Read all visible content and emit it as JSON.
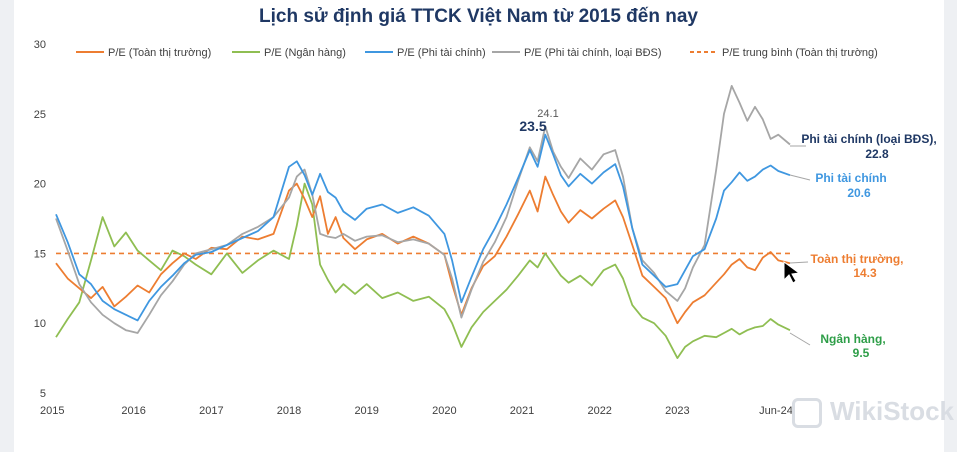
{
  "chart_data": {
    "type": "line",
    "title": "Lịch sử định giá TTCK Việt Nam từ 2015 đến nay",
    "xlabel": "",
    "ylabel": "",
    "ylim": [
      5,
      30
    ],
    "yticks": [
      "5",
      "10",
      "15",
      "20",
      "25",
      "30"
    ],
    "xlim": [
      2015.0,
      2024.45
    ],
    "xticks": [
      "2015",
      "2016",
      "2017",
      "2018",
      "2019",
      "2020",
      "2021",
      "2022",
      "2023",
      "Jun-24"
    ],
    "legend_position": "top",
    "series": [
      {
        "name": "P/E (Toàn thị trường)",
        "color": "#ed7d31",
        "dashed": false,
        "x": [
          2015.0,
          2015.15,
          2015.3,
          2015.45,
          2015.6,
          2015.75,
          2015.9,
          2016.05,
          2016.2,
          2016.35,
          2016.5,
          2016.65,
          2016.8,
          2017.0,
          2017.2,
          2017.4,
          2017.6,
          2017.8,
          2018.0,
          2018.1,
          2018.2,
          2018.3,
          2018.4,
          2018.5,
          2018.6,
          2018.7,
          2018.85,
          2019.0,
          2019.2,
          2019.4,
          2019.6,
          2019.8,
          2020.0,
          2020.1,
          2020.22,
          2020.35,
          2020.5,
          2020.65,
          2020.8,
          2020.95,
          2021.1,
          2021.2,
          2021.3,
          2021.4,
          2021.5,
          2021.6,
          2021.75,
          2021.9,
          2022.05,
          2022.2,
          2022.3,
          2022.42,
          2022.55,
          2022.7,
          2022.85,
          2023.0,
          2023.1,
          2023.2,
          2023.35,
          2023.5,
          2023.6,
          2023.7,
          2023.8,
          2023.9,
          2024.0,
          2024.1,
          2024.2,
          2024.3,
          2024.45
        ],
        "values": [
          14.3,
          13.2,
          12.5,
          11.8,
          12.6,
          11.2,
          11.9,
          12.7,
          12.2,
          13.5,
          14.3,
          15.0,
          14.6,
          15.4,
          15.3,
          16.2,
          16.0,
          16.4,
          19.5,
          20.0,
          18.9,
          17.6,
          19.1,
          16.4,
          17.6,
          16.1,
          15.3,
          16.0,
          16.4,
          15.7,
          16.2,
          15.7,
          14.9,
          12.8,
          10.6,
          12.5,
          14.1,
          14.8,
          16.2,
          17.8,
          19.5,
          18.0,
          20.5,
          19.2,
          18.0,
          17.2,
          18.1,
          17.5,
          18.2,
          18.8,
          17.6,
          15.6,
          13.4,
          12.6,
          11.8,
          10.0,
          10.8,
          11.5,
          12.0,
          12.9,
          13.5,
          14.2,
          14.6,
          14.0,
          13.8,
          14.7,
          15.1,
          14.5,
          14.3
        ]
      },
      {
        "name": "P/E (Ngân hàng)",
        "color": "#8fbe52",
        "dashed": false,
        "x": [
          2015.0,
          2015.15,
          2015.3,
          2015.45,
          2015.6,
          2015.75,
          2015.9,
          2016.05,
          2016.2,
          2016.35,
          2016.5,
          2016.65,
          2016.8,
          2017.0,
          2017.2,
          2017.4,
          2017.6,
          2017.8,
          2018.0,
          2018.1,
          2018.2,
          2018.3,
          2018.4,
          2018.5,
          2018.6,
          2018.7,
          2018.85,
          2019.0,
          2019.2,
          2019.4,
          2019.6,
          2019.8,
          2020.0,
          2020.1,
          2020.22,
          2020.35,
          2020.5,
          2020.65,
          2020.8,
          2020.95,
          2021.1,
          2021.2,
          2021.3,
          2021.4,
          2021.5,
          2021.6,
          2021.75,
          2021.9,
          2022.05,
          2022.2,
          2022.3,
          2022.42,
          2022.55,
          2022.7,
          2022.85,
          2023.0,
          2023.1,
          2023.2,
          2023.35,
          2023.5,
          2023.6,
          2023.7,
          2023.8,
          2023.9,
          2024.0,
          2024.1,
          2024.2,
          2024.3,
          2024.45
        ],
        "values": [
          9.0,
          10.3,
          11.5,
          14.5,
          17.6,
          15.5,
          16.5,
          15.2,
          14.5,
          13.8,
          15.2,
          14.8,
          14.2,
          13.5,
          15.0,
          13.6,
          14.5,
          15.2,
          14.6,
          17.0,
          20.0,
          18.5,
          14.2,
          13.1,
          12.2,
          12.8,
          12.1,
          12.8,
          11.8,
          12.2,
          11.6,
          11.9,
          11.0,
          10.0,
          8.3,
          9.7,
          10.8,
          11.6,
          12.4,
          13.4,
          14.5,
          14.0,
          15.0,
          14.2,
          13.4,
          12.9,
          13.4,
          12.7,
          13.8,
          14.2,
          13.2,
          11.3,
          10.4,
          10.0,
          9.1,
          7.5,
          8.3,
          8.7,
          9.1,
          9.0,
          9.3,
          9.6,
          9.2,
          9.5,
          9.7,
          9.8,
          10.3,
          9.9,
          9.5
        ]
      },
      {
        "name": "P/E (Phi tài chính)",
        "color": "#3f97e0",
        "dashed": false,
        "x": [
          2015.0,
          2015.15,
          2015.3,
          2015.45,
          2015.6,
          2015.75,
          2015.9,
          2016.05,
          2016.2,
          2016.35,
          2016.5,
          2016.65,
          2016.8,
          2017.0,
          2017.2,
          2017.4,
          2017.6,
          2017.8,
          2018.0,
          2018.1,
          2018.2,
          2018.3,
          2018.4,
          2018.5,
          2018.6,
          2018.7,
          2018.85,
          2019.0,
          2019.2,
          2019.4,
          2019.6,
          2019.8,
          2020.0,
          2020.1,
          2020.22,
          2020.35,
          2020.5,
          2020.65,
          2020.8,
          2020.95,
          2021.1,
          2021.2,
          2021.3,
          2021.4,
          2021.5,
          2021.6,
          2021.75,
          2021.9,
          2022.05,
          2022.2,
          2022.3,
          2022.42,
          2022.55,
          2022.7,
          2022.85,
          2023.0,
          2023.1,
          2023.2,
          2023.35,
          2023.5,
          2023.6,
          2023.7,
          2023.8,
          2023.9,
          2024.0,
          2024.1,
          2024.2,
          2024.3,
          2024.45
        ],
        "values": [
          17.8,
          15.8,
          13.5,
          12.8,
          11.6,
          11.0,
          10.6,
          10.2,
          11.6,
          12.6,
          13.4,
          14.3,
          14.9,
          15.1,
          15.6,
          16.1,
          16.6,
          17.6,
          21.2,
          21.6,
          20.6,
          19.2,
          20.7,
          19.4,
          19.0,
          18.0,
          17.4,
          18.2,
          18.5,
          17.9,
          18.3,
          17.7,
          16.4,
          14.5,
          11.5,
          13.3,
          15.3,
          16.8,
          18.5,
          20.4,
          22.4,
          21.2,
          23.5,
          22.1,
          20.6,
          19.8,
          20.7,
          20.0,
          20.8,
          21.4,
          19.8,
          16.8,
          14.2,
          13.4,
          12.6,
          12.8,
          13.8,
          14.8,
          15.3,
          17.5,
          19.5,
          20.1,
          20.8,
          20.2,
          20.5,
          21.0,
          21.3,
          20.9,
          20.6
        ]
      },
      {
        "name": "P/E (Phi tài chính, loại BĐS)",
        "color": "#a6a6a6",
        "dashed": false,
        "x": [
          2015.0,
          2015.15,
          2015.3,
          2015.45,
          2015.6,
          2015.75,
          2015.9,
          2016.05,
          2016.2,
          2016.35,
          2016.5,
          2016.65,
          2016.8,
          2017.0,
          2017.2,
          2017.4,
          2017.6,
          2017.8,
          2018.0,
          2018.1,
          2018.2,
          2018.3,
          2018.4,
          2018.5,
          2018.6,
          2018.7,
          2018.85,
          2019.0,
          2019.2,
          2019.4,
          2019.6,
          2019.8,
          2020.0,
          2020.1,
          2020.22,
          2020.35,
          2020.5,
          2020.65,
          2020.8,
          2020.95,
          2021.1,
          2021.2,
          2021.3,
          2021.4,
          2021.5,
          2021.6,
          2021.75,
          2021.9,
          2022.05,
          2022.2,
          2022.3,
          2022.42,
          2022.55,
          2022.7,
          2022.85,
          2023.0,
          2023.1,
          2023.2,
          2023.35,
          2023.5,
          2023.6,
          2023.7,
          2023.8,
          2023.9,
          2024.0,
          2024.1,
          2024.2,
          2024.3,
          2024.45
        ],
        "values": [
          17.5,
          15.2,
          12.8,
          11.5,
          10.6,
          10.0,
          9.5,
          9.3,
          10.6,
          12.0,
          13.0,
          14.2,
          15.0,
          15.3,
          15.6,
          16.4,
          16.9,
          17.6,
          19.0,
          20.5,
          21.0,
          19.2,
          16.4,
          16.2,
          16.1,
          16.4,
          15.9,
          16.2,
          16.3,
          15.8,
          16.0,
          15.7,
          14.9,
          13.2,
          10.4,
          12.4,
          14.4,
          15.8,
          17.6,
          20.2,
          22.6,
          21.6,
          24.1,
          22.3,
          21.2,
          20.4,
          21.8,
          21.0,
          22.1,
          22.4,
          20.5,
          16.8,
          14.5,
          13.6,
          12.3,
          11.6,
          12.5,
          14.0,
          15.6,
          21.0,
          25.0,
          27.0,
          25.8,
          24.5,
          25.5,
          24.6,
          23.2,
          23.5,
          22.8
        ]
      },
      {
        "name": "P/E trung bình (Toàn thị trường)",
        "color": "#ed7d31",
        "dashed": true,
        "x": [
          2015.0,
          2024.45
        ],
        "values": [
          15.0,
          15.0
        ]
      }
    ],
    "annotations": [
      {
        "text": "23.5",
        "x": 2021.3,
        "y": 23.5
      },
      {
        "text": "24.1",
        "x": 2021.4,
        "y": 24.1
      }
    ],
    "end_labels": [
      {
        "series": "P/E (Phi tài chính, loại BĐS)",
        "label": "Phi tài chính (loại BĐS),",
        "value": "22.8",
        "color": "#1f3864"
      },
      {
        "series": "P/E (Phi tài chính)",
        "label": "Phi tài chính",
        "value": "20.6",
        "color": "#3f97e0"
      },
      {
        "series": "P/E (Toàn thị trường)",
        "label": "Toàn thị trường,",
        "value": "14.3",
        "color": "#ed7d31"
      },
      {
        "series": "P/E (Ngân hàng)",
        "label": "Ngân hàng,",
        "value": "9.5",
        "color": "#2e9e48"
      }
    ]
  },
  "watermark": "WikiStock"
}
